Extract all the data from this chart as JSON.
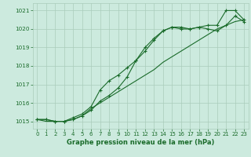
{
  "bg_color": "#cceade",
  "grid_color": "#aaccbb",
  "line_color": "#1a6b2a",
  "marker_color": "#1a6b2a",
  "title": "Graphe pression niveau de la mer (hPa)",
  "xlim": [
    -0.5,
    23.5
  ],
  "ylim": [
    1014.6,
    1021.4
  ],
  "yticks": [
    1015,
    1016,
    1017,
    1018,
    1019,
    1020,
    1021
  ],
  "xticks": [
    0,
    1,
    2,
    3,
    4,
    5,
    6,
    7,
    8,
    9,
    10,
    11,
    12,
    13,
    14,
    15,
    16,
    17,
    18,
    19,
    20,
    21,
    22,
    23
  ],
  "series": [
    [
      1015.1,
      1015.1,
      1015.0,
      1015.0,
      1015.2,
      1015.4,
      1015.8,
      1016.7,
      1017.2,
      1017.5,
      1017.9,
      1018.3,
      1018.8,
      1019.4,
      1019.9,
      1020.1,
      1020.1,
      1020.0,
      1020.1,
      1020.2,
      1020.2,
      1021.0,
      1021.0,
      1020.5
    ],
    [
      1015.1,
      1015.1,
      1015.0,
      1015.0,
      1015.1,
      1015.3,
      1015.6,
      1016.1,
      1016.4,
      1016.8,
      1017.4,
      1018.3,
      1019.0,
      1019.5,
      1019.9,
      1020.1,
      1020.0,
      1020.0,
      1020.1,
      1020.0,
      1019.9,
      1020.2,
      1020.7,
      1020.4
    ],
    [
      1015.1,
      1015.0,
      1015.0,
      1015.0,
      1015.1,
      1015.3,
      1015.7,
      1016.0,
      1016.3,
      1016.6,
      1016.9,
      1017.2,
      1017.5,
      1017.8,
      1018.2,
      1018.5,
      1018.8,
      1019.1,
      1019.4,
      1019.7,
      1020.0,
      1020.2,
      1020.4,
      1020.5
    ]
  ],
  "has_markers": [
    true,
    true,
    false
  ]
}
